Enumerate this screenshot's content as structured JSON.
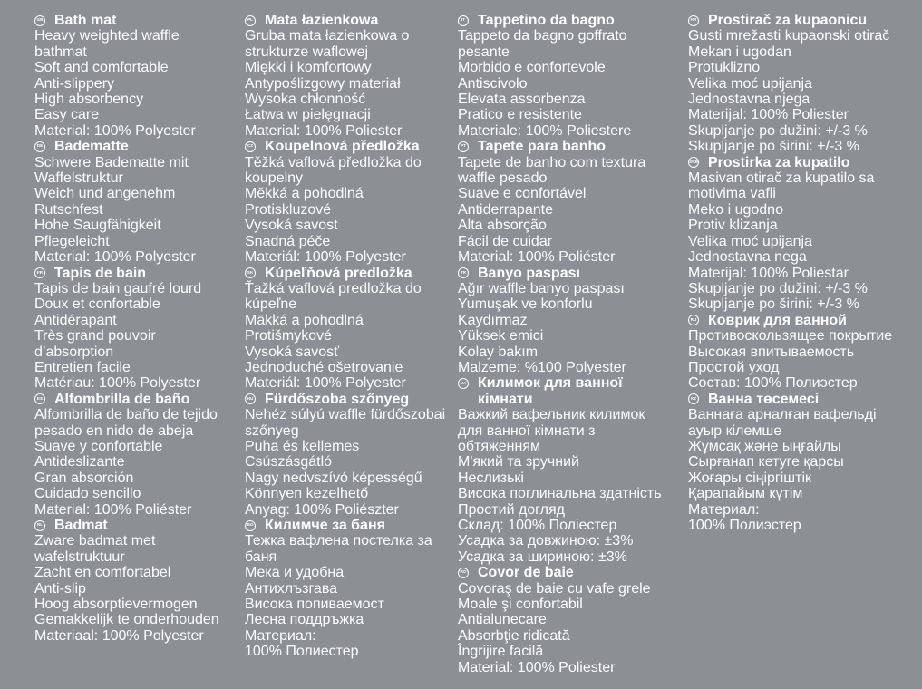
{
  "document": {
    "type": "multilingual-product-label",
    "background_color": "#8c8f93",
    "text_color": "#ffffff"
  },
  "columns": [
    {
      "sections": [
        {
          "code": "GB",
          "title": "Bath mat",
          "lines": [
            "Heavy weighted waffle bathmat",
            "Soft and comfortable",
            "Anti-slippery",
            "High absorbency",
            "Easy care",
            "Material: 100% Polyester"
          ]
        },
        {
          "code": "DE",
          "title": "Badematte",
          "lines": [
            "Schwere Badematte mit Waffelstruktur",
            "Weich und angenehm",
            "Rutschfest",
            "Hohe Saugfähigkeit",
            "Pflegeleicht",
            "Material: 100% Polyester"
          ]
        },
        {
          "code": "FR",
          "title": "Tapis de bain",
          "lines": [
            "Tapis de bain gaufré lourd",
            "Doux et confortable",
            "Antidérapant",
            "Très grand pouvoir d’absorption",
            "Entretien facile",
            "Matériau: 100% Polyester"
          ]
        },
        {
          "code": "ES",
          "title": "Alfombrilla de baño",
          "lines": [
            "Alfombrilla de baño de tejido pesado en nido de abeja",
            "Suave y confortable",
            "Antideslizante",
            "Gran absorción",
            "Cuidado sencillo",
            "Material: 100% Poliéster"
          ]
        },
        {
          "code": "NL",
          "title": "Badmat",
          "lines": [
            "Zware badmat met wafelstruktuur",
            "Zacht en comfortabel",
            "Anti-slip",
            "Hoog absorptievermogen",
            "Gemakkelijk te onderhouden",
            "Materiaal: 100% Polyester"
          ]
        }
      ]
    },
    {
      "sections": [
        {
          "code": "PL",
          "title": "Mata łazienkowa",
          "lines": [
            "Gruba mata łazienkowa o strukturze waflowej",
            "Miękki i komfortowy",
            "Antypoślizgowy materiał",
            "Wysoka chłonność",
            "Łatwa w pielęgnacji",
            "Materiał: 100% Poliester"
          ]
        },
        {
          "code": "CZ",
          "title": "Koupelnová předložka",
          "lines": [
            "Těžká vaflová předložka do koupelny",
            "Měkká a pohodlná",
            "Protiskluzové",
            "Vysoká savost",
            "Snadná péče",
            "Materiál: 100% Polyester"
          ]
        },
        {
          "code": "SK",
          "title": "Kúpeľňová predložka",
          "lines": [
            "Ťažká vaflová predložka do kúpeľne",
            "Mäkká a pohodlná",
            "Protišmykové",
            "Vysoká savosť",
            "Jednoduché ošetrovanie",
            "Materiál: 100% Polyester"
          ]
        },
        {
          "code": "HU",
          "title": "Fürdőszoba szőnyeg",
          "lines": [
            "Nehéz súlyú waffle fürdőszobai szőnyeg",
            "Puha és kellemes",
            "Csúszásgátló",
            "Nagy nedvszívó képességű",
            "Könnyen kezelhető",
            "Anyag: 100% Poliészter"
          ]
        },
        {
          "code": "BG",
          "title": "Килимче за баня",
          "lines": [
            "Тежка вафлена постелка за баня",
            "Мека и удобна",
            "Антихлъзгава",
            "Висока попиваемост",
            "Лесна поддръжка",
            "Материал:",
            "100% Полиестер"
          ]
        }
      ]
    },
    {
      "sections": [
        {
          "code": "IT",
          "title": "Tappetino da bagno",
          "lines": [
            "Tappeto da bagno goffrato pesante",
            "Morbido e confortevole",
            "Antiscivolo",
            "Elevata assorbenza",
            "Pratico e resistente",
            "Materiale: 100% Poliestere"
          ]
        },
        {
          "code": "PT",
          "title": "Tapete para banho",
          "lines": [
            "Tapete de banho com textura waffle pesado",
            "Suave e confortável",
            "Antiderrapante",
            "Alta absorção",
            "Fácil de cuidar",
            "Material: 100% Poliéster"
          ]
        },
        {
          "code": "TR",
          "title": "Banyo paspası",
          "lines": [
            "Ağır waffle banyo paspası",
            "Yumuşak ve konforlu",
            "Kaydırmaz",
            "Yüksek emici",
            "Kolay bakım",
            "Malzeme: %100 Polyester"
          ]
        },
        {
          "code": "UA",
          "title": "Килимок для ванної кімнати",
          "lines": [
            "Важкий вафельник килимок для ванної кімнати з обтяженням",
            "М'який та зручний",
            "Неслизькі",
            "Висока поглинальна здатність",
            "Простий догляд",
            "Склад: 100% Поліестер",
            "Усадка за довжиною: ±3%",
            "Усадка за шириною: ±3%"
          ]
        },
        {
          "code": "RO",
          "title": "Covor de baie",
          "lines": [
            "Covoraş de baie cu vafe grele",
            "Moale şi confortabil",
            "Antialunecare",
            "Absorbţie ridicată",
            "Îngrijire facilă",
            "Material: 100% Poliester"
          ]
        }
      ]
    },
    {
      "sections": [
        {
          "code": "HR",
          "title": "Prostirač za kupaonicu",
          "lines": [
            "Gusti mrežasti kupaonski otirač",
            "Mekan i ugodan",
            "Protuklizno",
            "Velika moć upijanja",
            "Jednostavna njega",
            "Materijal: 100% Poliester",
            "Skupljanje po dužini: +/-3 %",
            "Skupljanje po širini: +/-3 %"
          ]
        },
        {
          "code": "SRB",
          "title": "Prostirka za kupatilo",
          "lines": [
            "Masivan otirač za kupatilo sa motivima vafli",
            "Meko i ugodno",
            "Protiv klizanja",
            "Velika moć upijanja",
            "Jednostavna nega",
            "Materijal: 100% Poliestar",
            "Skupljanje po dužini: +/-3 %",
            "Skupljanje po širini: +/-3 %"
          ]
        },
        {
          "code": "RU",
          "title": "Коврик для ванной",
          "lines": [
            "Противоскользящее покрытие",
            "Высокая впитываемость",
            "Простой уход",
            "Состав: 100% Полиэстер"
          ]
        },
        {
          "code": "KZ",
          "title": "Ванна төсемесі",
          "lines": [
            "Ваннаға арналған вафельді ауыр кілемше",
            "Жұмсақ және ыңғайлы",
            "Сырғанап кетуге қарсы",
            "Жоғары сіңіргіштік",
            "Қарапайым күтім",
            "Материал:",
            "100% Полиэстер"
          ]
        }
      ]
    }
  ]
}
